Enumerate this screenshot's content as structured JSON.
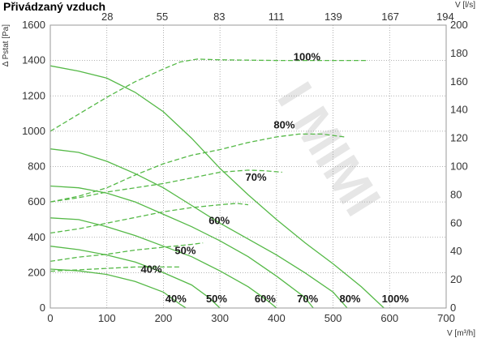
{
  "title": "Přivádzaný vzduch",
  "chart_data": {
    "type": "line",
    "title": "Přivádzaný vzduch",
    "xlabel": "V [m³/h]",
    "ylabel": "Δ Pstat [Pa]",
    "x2label": "V [l/s]",
    "y2label": "",
    "xlim": [
      0,
      700
    ],
    "ylim": [
      0,
      1600
    ],
    "y2lim": [
      0,
      200
    ],
    "grid": true,
    "x_ticks": [
      "0",
      "100",
      "200",
      "300",
      "400",
      "500",
      "600",
      "700"
    ],
    "y_ticks": [
      "0",
      "200",
      "400",
      "600",
      "800",
      "1000",
      "1200",
      "1400",
      "1600"
    ],
    "x2_ticks": [
      "28",
      "55",
      "83",
      "111",
      "139",
      "167",
      "194"
    ],
    "y2_ticks": [
      "0",
      "20",
      "40",
      "60",
      "80",
      "100",
      "120",
      "140",
      "160",
      "180",
      "200"
    ],
    "pressure_curves": [
      {
        "label": "100%",
        "points": [
          [
            0,
            1370
          ],
          [
            50,
            1340
          ],
          [
            100,
            1300
          ],
          [
            150,
            1220
          ],
          [
            200,
            1110
          ],
          [
            250,
            960
          ],
          [
            300,
            790
          ],
          [
            350,
            640
          ],
          [
            400,
            500
          ],
          [
            450,
            370
          ],
          [
            500,
            250
          ],
          [
            550,
            120
          ],
          [
            590,
            0
          ]
        ]
      },
      {
        "label": "80%",
        "points": [
          [
            0,
            900
          ],
          [
            50,
            880
          ],
          [
            100,
            830
          ],
          [
            150,
            760
          ],
          [
            200,
            680
          ],
          [
            250,
            580
          ],
          [
            300,
            480
          ],
          [
            350,
            390
          ],
          [
            400,
            300
          ],
          [
            450,
            200
          ],
          [
            500,
            90
          ],
          [
            525,
            0
          ]
        ]
      },
      {
        "label": "70%",
        "points": [
          [
            0,
            690
          ],
          [
            50,
            680
          ],
          [
            100,
            650
          ],
          [
            150,
            600
          ],
          [
            200,
            530
          ],
          [
            250,
            460
          ],
          [
            300,
            380
          ],
          [
            350,
            290
          ],
          [
            400,
            180
          ],
          [
            450,
            60
          ],
          [
            465,
            0
          ]
        ]
      },
      {
        "label": "60%",
        "points": [
          [
            0,
            510
          ],
          [
            50,
            500
          ],
          [
            100,
            460
          ],
          [
            150,
            410
          ],
          [
            200,
            350
          ],
          [
            250,
            290
          ],
          [
            300,
            210
          ],
          [
            350,
            120
          ],
          [
            385,
            40
          ],
          [
            400,
            0
          ]
        ]
      },
      {
        "label": "50%",
        "points": [
          [
            0,
            350
          ],
          [
            50,
            330
          ],
          [
            100,
            300
          ],
          [
            150,
            260
          ],
          [
            200,
            200
          ],
          [
            250,
            130
          ],
          [
            280,
            60
          ],
          [
            300,
            0
          ]
        ]
      },
      {
        "label": "40%",
        "points": [
          [
            0,
            220
          ],
          [
            50,
            210
          ],
          [
            100,
            190
          ],
          [
            150,
            150
          ],
          [
            200,
            90
          ],
          [
            230,
            20
          ],
          [
            240,
            0
          ]
        ]
      }
    ],
    "airflow_curves": [
      {
        "label": "100%",
        "points": [
          [
            0,
            125
          ],
          [
            50,
            137
          ],
          [
            100,
            149
          ],
          [
            150,
            160
          ],
          [
            200,
            169
          ],
          [
            230,
            174
          ],
          [
            260,
            176
          ],
          [
            300,
            175.5
          ],
          [
            400,
            175
          ],
          [
            450,
            175
          ],
          [
            500,
            175
          ],
          [
            560,
            175
          ]
        ]
      },
      {
        "label": "80%",
        "points": [
          [
            0,
            75
          ],
          [
            50,
            79
          ],
          [
            100,
            85
          ],
          [
            150,
            94
          ],
          [
            200,
            102
          ],
          [
            250,
            108
          ],
          [
            300,
            112
          ],
          [
            350,
            117
          ],
          [
            400,
            121
          ],
          [
            440,
            123
          ],
          [
            480,
            123
          ],
          [
            520,
            121
          ]
        ]
      },
      {
        "label": "70%",
        "points": [
          [
            0,
            75
          ],
          [
            50,
            78
          ],
          [
            100,
            82
          ],
          [
            150,
            85
          ],
          [
            200,
            88
          ],
          [
            250,
            92
          ],
          [
            300,
            96
          ],
          [
            350,
            97.5
          ],
          [
            380,
            97
          ],
          [
            410,
            96
          ]
        ]
      },
      {
        "label": "60%",
        "points": [
          [
            0,
            53
          ],
          [
            50,
            56
          ],
          [
            100,
            60
          ],
          [
            150,
            64
          ],
          [
            200,
            68
          ],
          [
            250,
            71
          ],
          [
            300,
            73
          ],
          [
            330,
            74
          ],
          [
            350,
            73
          ]
        ]
      },
      {
        "label": "50%",
        "points": [
          [
            0,
            33
          ],
          [
            50,
            36
          ],
          [
            100,
            38
          ],
          [
            150,
            41
          ],
          [
            200,
            43
          ],
          [
            250,
            45
          ],
          [
            270,
            46
          ]
        ]
      },
      {
        "label": "40%",
        "points": [
          [
            0,
            26
          ],
          [
            50,
            27
          ],
          [
            100,
            28
          ],
          [
            150,
            29
          ],
          [
            200,
            29
          ],
          [
            230,
            29
          ]
        ]
      }
    ],
    "right_labels": [
      {
        "text": "100%",
        "x": 430,
        "y": 1400
      },
      {
        "text": "80%",
        "x": 395,
        "y": 1015
      },
      {
        "text": "70%",
        "x": 345,
        "y": 720
      },
      {
        "text": "60%",
        "x": 280,
        "y": 475
      },
      {
        "text": "50%",
        "x": 220,
        "y": 305
      },
      {
        "text": "40%",
        "x": 160,
        "y": 200
      }
    ],
    "bottom_labels": [
      {
        "text": "40%",
        "x": 222
      },
      {
        "text": "50%",
        "x": 294
      },
      {
        "text": "60%",
        "x": 380
      },
      {
        "text": "70%",
        "x": 455
      },
      {
        "text": "80%",
        "x": 530
      },
      {
        "text": "100%",
        "x": 610
      }
    ],
    "line_color": "#55b947"
  }
}
